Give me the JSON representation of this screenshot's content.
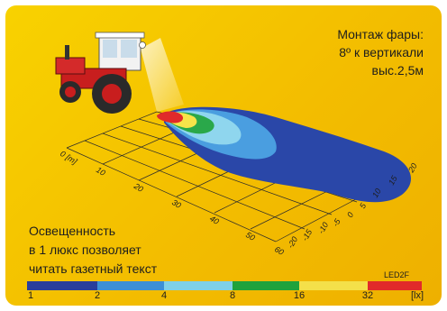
{
  "mount_text": {
    "line1": "Монтаж фары:",
    "line2": "8º к вертикали",
    "line3": "выс.2,5м"
  },
  "caption": {
    "line1": "Освещенность",
    "line2": "в 1 люкс позволяет",
    "line3": "читать газетный текст"
  },
  "model": "LED2F",
  "scale": {
    "ticks": [
      "1",
      "2",
      "4",
      "8",
      "16",
      "32"
    ],
    "unit": "[lx]",
    "colors": [
      "#2a3e9c",
      "#3d8fd6",
      "#7fd0e8",
      "#1fa23c",
      "#f4e04a",
      "#e12a2a"
    ]
  },
  "axis_x": {
    "unit_label": "0 [m]",
    "labels": [
      "10",
      "20",
      "30",
      "40",
      "50",
      "60"
    ]
  },
  "axis_y": {
    "labels": [
      "-20",
      "-15",
      "-10",
      "-5",
      "0",
      "5",
      "10",
      "15",
      "20"
    ]
  },
  "isolux_colors": {
    "l1": "#2a47a8",
    "l2": "#4a9ee0",
    "l3": "#8fd6ee",
    "l4": "#2aa84a",
    "l5": "#f6e44a",
    "l6": "#e02a2a"
  }
}
